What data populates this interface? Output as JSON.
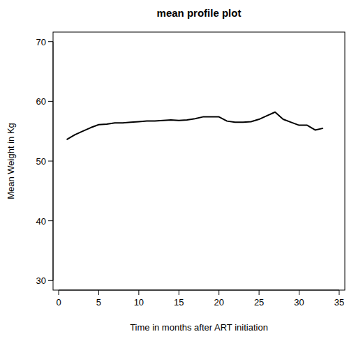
{
  "chart_data": {
    "type": "line",
    "title": "mean profile plot",
    "x_label": "Time in months after ART initiation",
    "y_label": "Mean Weight in Kg",
    "x": [
      1,
      2,
      3,
      4,
      5,
      6,
      7,
      8,
      9,
      10,
      11,
      12,
      13,
      14,
      15,
      16,
      17,
      18,
      19,
      20,
      21,
      22,
      23,
      24,
      25,
      26,
      27,
      28,
      29,
      30,
      31,
      32,
      33
    ],
    "values": [
      53.6,
      54.4,
      55.0,
      55.6,
      56.1,
      56.2,
      56.4,
      56.4,
      56.5,
      56.6,
      56.7,
      56.7,
      56.8,
      56.9,
      56.8,
      56.9,
      57.1,
      57.4,
      57.4,
      57.4,
      56.7,
      56.5,
      56.5,
      56.6,
      57.0,
      57.6,
      58.2,
      57.0,
      56.5,
      56.0,
      56.0,
      55.2,
      55.5
    ],
    "color": "#000000",
    "xlim": [
      -0.7,
      35.7
    ],
    "xticks": [
      0,
      5,
      10,
      15,
      20,
      25,
      30,
      35
    ],
    "ylim": [
      28.4,
      71.6
    ],
    "yticks": [
      30,
      40,
      50,
      60,
      70
    ],
    "grid": false
  }
}
